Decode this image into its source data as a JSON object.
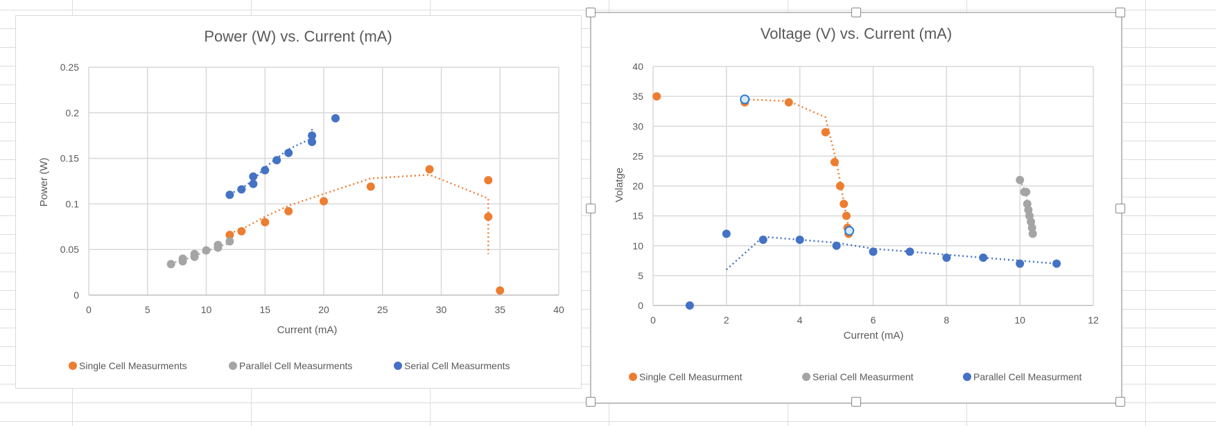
{
  "chart_data": [
    {
      "type": "scatter",
      "title": "Power (W) vs. Current (mA)",
      "xlabel": "Current (mA)",
      "ylabel": "Power (W)",
      "xlim": [
        0,
        40
      ],
      "ylim": [
        0,
        0.25
      ],
      "xticks": [
        0,
        5,
        10,
        15,
        20,
        25,
        30,
        35,
        40
      ],
      "yticks": [
        0,
        0.05,
        0.1,
        0.15,
        0.2,
        0.25
      ],
      "xtick_labels": [
        "0",
        "5",
        "10",
        "15",
        "20",
        "25",
        "30",
        "35",
        "40"
      ],
      "ytick_labels": [
        "0",
        "0.05",
        "0.1",
        "0.15",
        "0.2",
        "0.25"
      ],
      "grid": true,
      "legend": "bottom",
      "series": [
        {
          "name": "Single Cell Measurments",
          "color": "#ED7D31",
          "points": [
            [
              12,
              0.066
            ],
            [
              13,
              0.07
            ],
            [
              15,
              0.08
            ],
            [
              17,
              0.092
            ],
            [
              20,
              0.103
            ],
            [
              24,
              0.119
            ],
            [
              29,
              0.138
            ],
            [
              34,
              0.126
            ],
            [
              34,
              0.086
            ],
            [
              35,
              0.005
            ]
          ],
          "trendline": [
            [
              12,
              0.068
            ],
            [
              13,
              0.072
            ],
            [
              15,
              0.086
            ],
            [
              17,
              0.098
            ],
            [
              20,
              0.111
            ],
            [
              24,
              0.128
            ],
            [
              29,
              0.132
            ],
            [
              34,
              0.106
            ],
            [
              34,
              0.045
            ]
          ]
        },
        {
          "name": "Parallel Cell Measurments",
          "color": "#A5A5A5",
          "points": [
            [
              7,
              0.034
            ],
            [
              8,
              0.037
            ],
            [
              8,
              0.04
            ],
            [
              9,
              0.042
            ],
            [
              9,
              0.045
            ],
            [
              10,
              0.049
            ],
            [
              11,
              0.052
            ],
            [
              11,
              0.055
            ],
            [
              12,
              0.059
            ]
          ],
          "trendline": [
            [
              7,
              0.035
            ],
            [
              8,
              0.038
            ],
            [
              9,
              0.043
            ],
            [
              10,
              0.048
            ],
            [
              11,
              0.053
            ],
            [
              12,
              0.057
            ]
          ]
        },
        {
          "name": "Serial Cell Measurments",
          "color": "#4472C4",
          "points": [
            [
              12,
              0.11
            ],
            [
              13,
              0.116
            ],
            [
              14,
              0.122
            ],
            [
              14,
              0.13
            ],
            [
              15,
              0.137
            ],
            [
              16,
              0.148
            ],
            [
              17,
              0.156
            ],
            [
              19,
              0.168
            ],
            [
              19,
              0.175
            ],
            [
              21,
              0.194
            ]
          ],
          "trendline": [
            [
              12,
              0.111
            ],
            [
              13,
              0.117
            ],
            [
              14,
              0.126
            ],
            [
              15,
              0.14
            ],
            [
              16,
              0.15
            ],
            [
              17,
              0.16
            ],
            [
              19,
              0.172
            ],
            [
              19,
              0.185
            ]
          ]
        }
      ]
    },
    {
      "type": "scatter",
      "title": "Voltage (V) vs. Current (mA)",
      "xlabel": "Current (mA)",
      "ylabel": "Volatge",
      "xlim": [
        0,
        12
      ],
      "ylim": [
        0,
        40
      ],
      "xticks": [
        0,
        2,
        4,
        6,
        8,
        10,
        12
      ],
      "yticks": [
        0,
        5,
        10,
        15,
        20,
        25,
        30,
        35,
        40
      ],
      "xtick_labels": [
        "0",
        "2",
        "4",
        "6",
        "8",
        "10",
        "12"
      ],
      "ytick_labels": [
        "0",
        "5",
        "10",
        "15",
        "20",
        "25",
        "30",
        "35",
        "40"
      ],
      "grid": true,
      "legend": "bottom",
      "selected": true,
      "series": [
        {
          "name": "Single Cell Measurment",
          "color": "#ED7D31",
          "points": [
            [
              0.1,
              35
            ],
            [
              2.5,
              34
            ],
            [
              3.7,
              34
            ],
            [
              4.7,
              29
            ],
            [
              4.95,
              24
            ],
            [
              5.1,
              20
            ],
            [
              5.2,
              17
            ],
            [
              5.27,
              15
            ],
            [
              5.3,
              13
            ],
            [
              5.33,
              12
            ]
          ],
          "trendline": [
            [
              2.5,
              34.5
            ],
            [
              3.7,
              34.2
            ],
            [
              4.7,
              31.5
            ],
            [
              5.0,
              24
            ],
            [
              5.15,
              19
            ],
            [
              5.3,
              14
            ],
            [
              5.35,
              12.5
            ]
          ],
          "selected_points": [
            [
              2.5,
              34.5
            ],
            [
              5.35,
              12.5
            ]
          ]
        },
        {
          "name": "Serial Cell Measurment",
          "color": "#A5A5A5",
          "points": [
            [
              10,
              21
            ],
            [
              10.12,
              19
            ],
            [
              10.17,
              19
            ],
            [
              10.2,
              17
            ],
            [
              10.23,
              16
            ],
            [
              10.26,
              15
            ],
            [
              10.3,
              14
            ],
            [
              10.33,
              13
            ],
            [
              10.35,
              12
            ]
          ],
          "trendline": [
            [
              10,
              21
            ],
            [
              10.15,
              19
            ],
            [
              10.25,
              15.5
            ],
            [
              10.35,
              12
            ]
          ]
        },
        {
          "name": "Parallel Cell Measurment",
          "color": "#4472C4",
          "points": [
            [
              1,
              0
            ],
            [
              2,
              12
            ],
            [
              3,
              11
            ],
            [
              4,
              11
            ],
            [
              5,
              10
            ],
            [
              6,
              9
            ],
            [
              7,
              9
            ],
            [
              8,
              8
            ],
            [
              9,
              8
            ],
            [
              10,
              7
            ],
            [
              11,
              7
            ]
          ],
          "trendline": [
            [
              2,
              6
            ],
            [
              3,
              11.5
            ],
            [
              4,
              11
            ],
            [
              5,
              10.5
            ],
            [
              6,
              9.5
            ],
            [
              7,
              9
            ],
            [
              8,
              8.5
            ],
            [
              9,
              8
            ],
            [
              10,
              7.5
            ],
            [
              11,
              7
            ]
          ]
        }
      ]
    }
  ]
}
